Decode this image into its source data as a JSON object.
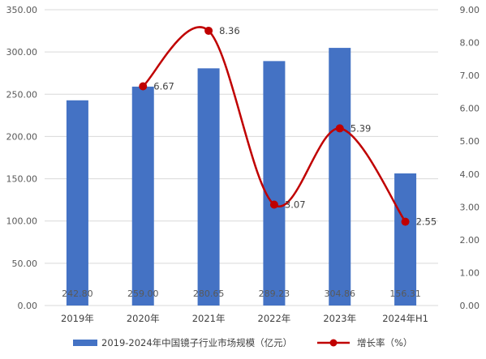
{
  "chart_data": {
    "type": "bar",
    "categories": [
      "2019年",
      "2020年",
      "2021年",
      "2022年",
      "2023年",
      "2024年H1"
    ],
    "series": [
      {
        "name": "2019-2024年中国镜子行业市场规模（亿元）",
        "type": "bar",
        "axis": "left",
        "values": [
          242.8,
          259.0,
          280.65,
          289.23,
          304.86,
          156.31
        ],
        "labels": [
          "242.80",
          "259.00",
          "280.65",
          "289.23",
          "304.86",
          "156.31"
        ],
        "color": "#4472C4"
      },
      {
        "name": "增长率（%）",
        "type": "line",
        "axis": "right",
        "values": [
          null,
          6.67,
          8.36,
          3.07,
          5.39,
          2.55
        ],
        "labels": [
          "",
          "6.67",
          "8.36",
          "3.07",
          "5.39",
          "2.55"
        ],
        "color": "#C00000"
      }
    ],
    "y_left": {
      "min": 0,
      "max": 350,
      "ticks": [
        "0.00",
        "50.00",
        "100.00",
        "150.00",
        "200.00",
        "250.00",
        "300.00",
        "350.00"
      ]
    },
    "y_right": {
      "min": 0,
      "max": 9,
      "ticks": [
        "0.00",
        "1.00",
        "2.00",
        "3.00",
        "4.00",
        "5.00",
        "6.00",
        "7.00",
        "8.00",
        "9.00"
      ]
    },
    "grid": true,
    "legend_position": "bottom"
  }
}
